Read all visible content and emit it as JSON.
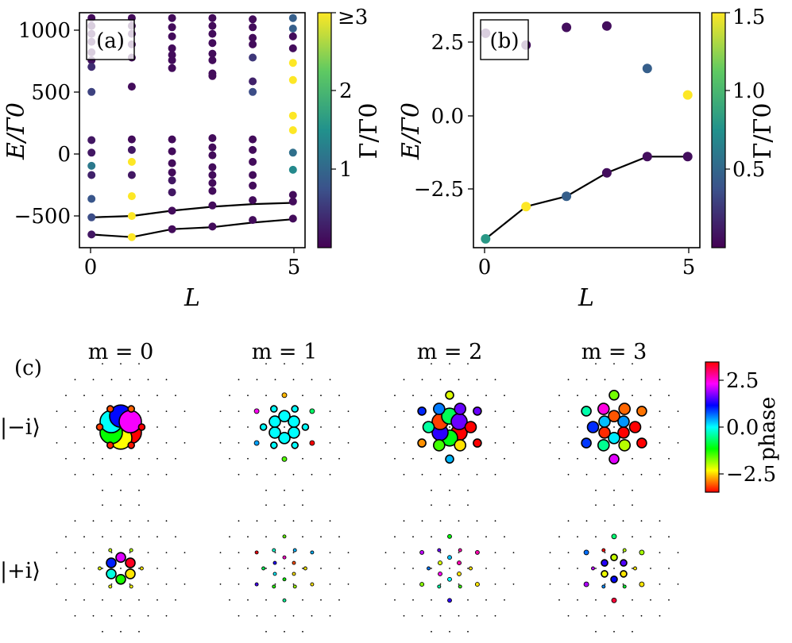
{
  "chart_data": [
    {
      "panel": "(a)",
      "type": "scatter",
      "xlabel": "L",
      "ylabel": "E/Γ0",
      "xlim": [
        -0.3,
        5.3
      ],
      "ylim": [
        -720,
        1060
      ],
      "xticks": [
        "0",
        "5"
      ],
      "yticks": [
        "1000",
        "500",
        "0",
        "−500"
      ],
      "colorbar": {
        "label": "Γ/Γ0",
        "ticks": [
          "≥3",
          "2",
          "1"
        ],
        "range": [
          0,
          3
        ]
      },
      "points": [
        {
          "x": 0,
          "y": 1020,
          "c": 0.1
        },
        {
          "x": 0,
          "y": 960,
          "c": 0.1
        },
        {
          "x": 0,
          "y": 900,
          "c": 0.1
        },
        {
          "x": 0,
          "y": 840,
          "c": 0.1
        },
        {
          "x": 0,
          "y": 760,
          "c": 0.1
        },
        {
          "x": 0,
          "y": 700,
          "c": 0.15
        },
        {
          "x": 0,
          "y": 650,
          "c": 0.4
        },
        {
          "x": 0,
          "y": 460,
          "c": 0.6
        },
        {
          "x": 0,
          "y": 95,
          "c": 0.2
        },
        {
          "x": 0,
          "y": 0,
          "c": 0.2
        },
        {
          "x": 0,
          "y": -100,
          "c": 1.2
        },
        {
          "x": 0,
          "y": -170,
          "c": 0.3
        },
        {
          "x": 0,
          "y": -350,
          "c": 0.8
        },
        {
          "x": 0,
          "y": -490,
          "c": 0.7
        },
        {
          "x": 0,
          "y": -620,
          "c": 0.2
        },
        {
          "x": 1,
          "y": 1020,
          "c": 0.1
        },
        {
          "x": 1,
          "y": 960,
          "c": 0.1
        },
        {
          "x": 1,
          "y": 900,
          "c": 0.1
        },
        {
          "x": 1,
          "y": 820,
          "c": 0.1
        },
        {
          "x": 1,
          "y": 720,
          "c": 0.1
        },
        {
          "x": 1,
          "y": 500,
          "c": 0.1
        },
        {
          "x": 1,
          "y": 100,
          "c": 0.1
        },
        {
          "x": 1,
          "y": 20,
          "c": 0.2
        },
        {
          "x": 1,
          "y": -70,
          "c": 3
        },
        {
          "x": 1,
          "y": -170,
          "c": 0.2
        },
        {
          "x": 1,
          "y": -330,
          "c": 3
        },
        {
          "x": 1,
          "y": -480,
          "c": 3
        },
        {
          "x": 1,
          "y": -640,
          "c": 3
        },
        {
          "x": 2,
          "y": 1020,
          "c": 0.1
        },
        {
          "x": 2,
          "y": 950,
          "c": 0.1
        },
        {
          "x": 2,
          "y": 880,
          "c": 0.1
        },
        {
          "x": 2,
          "y": 790,
          "c": 0.1
        },
        {
          "x": 2,
          "y": 740,
          "c": 0.1
        },
        {
          "x": 2,
          "y": 700,
          "c": 0.1
        },
        {
          "x": 2,
          "y": 640,
          "c": 0.1
        },
        {
          "x": 2,
          "y": 100,
          "c": 0.1
        },
        {
          "x": 2,
          "y": 10,
          "c": 0.1
        },
        {
          "x": 2,
          "y": -80,
          "c": 0.1
        },
        {
          "x": 2,
          "y": -150,
          "c": 0.1
        },
        {
          "x": 2,
          "y": -210,
          "c": 0.2
        },
        {
          "x": 2,
          "y": -300,
          "c": 0.2
        },
        {
          "x": 2,
          "y": -440,
          "c": 0.1
        },
        {
          "x": 2,
          "y": -580,
          "c": 0.1
        },
        {
          "x": 3,
          "y": 1020,
          "c": 0.1
        },
        {
          "x": 3,
          "y": 960,
          "c": 0.1
        },
        {
          "x": 3,
          "y": 900,
          "c": 0.1
        },
        {
          "x": 3,
          "y": 830,
          "c": 0.1
        },
        {
          "x": 3,
          "y": 750,
          "c": 0.1
        },
        {
          "x": 3,
          "y": 700,
          "c": 0.1
        },
        {
          "x": 3,
          "y": 600,
          "c": 0.1
        },
        {
          "x": 3,
          "y": 580,
          "c": 0.1
        },
        {
          "x": 3,
          "y": 110,
          "c": 0.1
        },
        {
          "x": 3,
          "y": 40,
          "c": 0.1
        },
        {
          "x": 3,
          "y": -20,
          "c": 0.1
        },
        {
          "x": 3,
          "y": -110,
          "c": 0.1
        },
        {
          "x": 3,
          "y": -170,
          "c": 0.1
        },
        {
          "x": 3,
          "y": -230,
          "c": 0.1
        },
        {
          "x": 3,
          "y": -290,
          "c": 0.1
        },
        {
          "x": 3,
          "y": -400,
          "c": 0.1
        },
        {
          "x": 3,
          "y": -560,
          "c": 0.1
        },
        {
          "x": 4,
          "y": 1010,
          "c": 0.1
        },
        {
          "x": 4,
          "y": 950,
          "c": 0.1
        },
        {
          "x": 4,
          "y": 870,
          "c": 0.1
        },
        {
          "x": 4,
          "y": 820,
          "c": 0.1
        },
        {
          "x": 4,
          "y": 720,
          "c": 0.5
        },
        {
          "x": 4,
          "y": 540,
          "c": 0.3
        },
        {
          "x": 4,
          "y": 460,
          "c": 0.7
        },
        {
          "x": 4,
          "y": 100,
          "c": 0.1
        },
        {
          "x": 4,
          "y": 20,
          "c": 0.1
        },
        {
          "x": 4,
          "y": -70,
          "c": 0.1
        },
        {
          "x": 4,
          "y": -170,
          "c": 0.1
        },
        {
          "x": 4,
          "y": -250,
          "c": 0.1
        },
        {
          "x": 4,
          "y": -360,
          "c": 0.1
        },
        {
          "x": 4,
          "y": -510,
          "c": 0.1
        },
        {
          "x": 5,
          "y": 1020,
          "c": 0.9
        },
        {
          "x": 5,
          "y": 940,
          "c": 0.9
        },
        {
          "x": 5,
          "y": 880,
          "c": 0.1
        },
        {
          "x": 5,
          "y": 790,
          "c": 0.1
        },
        {
          "x": 5,
          "y": 680,
          "c": 3
        },
        {
          "x": 5,
          "y": 550,
          "c": 3
        },
        {
          "x": 5,
          "y": 280,
          "c": 3
        },
        {
          "x": 5,
          "y": 170,
          "c": 3
        },
        {
          "x": 5,
          "y": 0,
          "c": 1.1
        },
        {
          "x": 5,
          "y": -130,
          "c": 1.4
        },
        {
          "x": 5,
          "y": -320,
          "c": 0.1
        },
        {
          "x": 5,
          "y": -370,
          "c": 0.1
        },
        {
          "x": 5,
          "y": -500,
          "c": 0.1
        }
      ],
      "lines": [
        {
          "x": [
            0,
            1,
            2,
            3,
            4,
            5
          ],
          "y": [
            -490,
            -480,
            -440,
            -410,
            -390,
            -380
          ]
        },
        {
          "x": [
            0,
            1,
            2,
            3,
            4,
            5
          ],
          "y": [
            -620,
            -640,
            -580,
            -565,
            -530,
            -505
          ]
        }
      ]
    },
    {
      "panel": "(b)",
      "type": "scatter",
      "xlabel": "L",
      "ylabel": "E/Γ0",
      "xlim": [
        -0.3,
        5.3
      ],
      "ylim": [
        -4.4,
        3.6
      ],
      "xticks": [
        "0",
        "5"
      ],
      "yticks": [
        "2.5",
        "0.0",
        "−2.5"
      ],
      "colorbar": {
        "label": "Γ/Γ0",
        "ticks": [
          "1.5",
          "1.0",
          "0.5"
        ],
        "range": [
          0,
          1.5
        ]
      },
      "points": [
        {
          "x": 0,
          "y": 2.9,
          "c": 0.06
        },
        {
          "x": 1,
          "y": 2.5,
          "c": 0.06
        },
        {
          "x": 2,
          "y": 3.1,
          "c": 0.06
        },
        {
          "x": 3,
          "y": 3.15,
          "c": 0.06
        },
        {
          "x": 4,
          "y": 1.7,
          "c": 0.45
        },
        {
          "x": 5,
          "y": 0.8,
          "c": 1.5
        },
        {
          "x": 0,
          "y": -4.1,
          "c": 0.8
        },
        {
          "x": 1,
          "y": -3.0,
          "c": 1.5
        },
        {
          "x": 2,
          "y": -2.65,
          "c": 0.45
        },
        {
          "x": 3,
          "y": -1.85,
          "c": 0.06
        },
        {
          "x": 4,
          "y": -1.3,
          "c": 0.06
        },
        {
          "x": 5,
          "y": -1.3,
          "c": 0.06
        }
      ],
      "lines": [
        {
          "x": [
            0,
            1,
            2,
            3,
            4,
            5
          ],
          "y": [
            -4.1,
            -3.0,
            -2.65,
            -1.85,
            -1.3,
            -1.3
          ]
        }
      ]
    },
    {
      "panel": "(c)",
      "type": "lattice",
      "columns": [
        "m = 0",
        "m = 1",
        "m = 2",
        "m = 3"
      ],
      "rows": [
        "|−i⟩",
        "|+i⟩"
      ],
      "colorbar": {
        "label": "phase",
        "ticks": [
          "2.5",
          "0.0",
          "−2.5"
        ],
        "range": [
          -3.14,
          3.14
        ]
      }
    }
  ]
}
